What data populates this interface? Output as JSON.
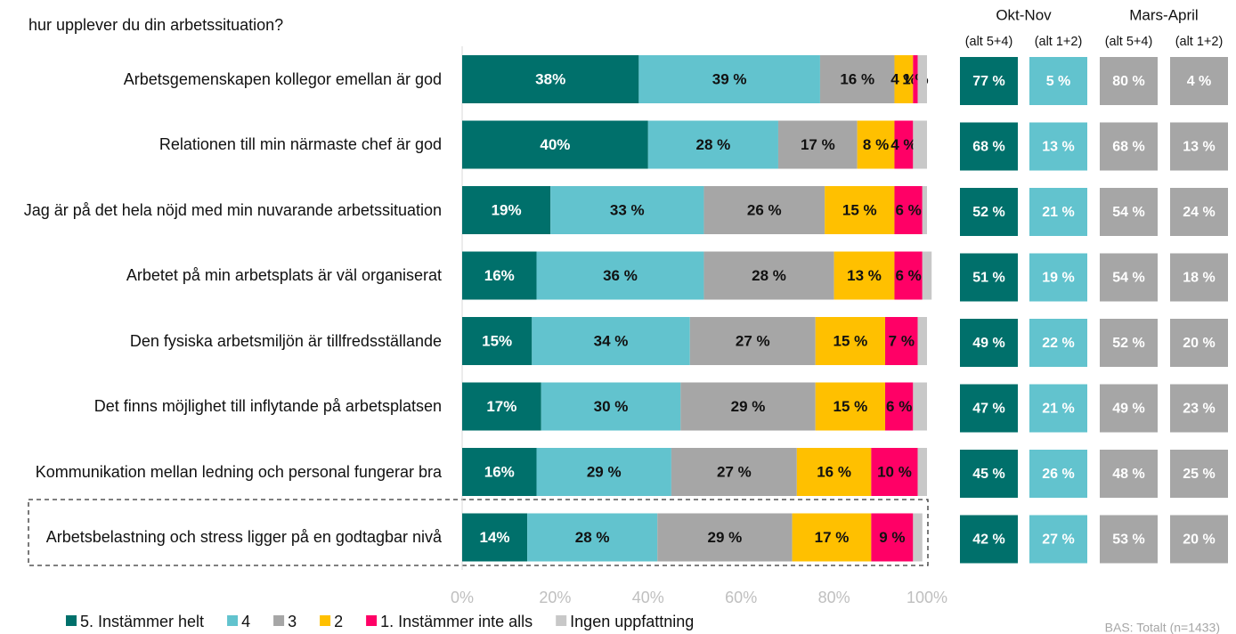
{
  "chart_data": {
    "type": "stacked-bar-horizontal",
    "title": "hur upplever du din arbetssituation?",
    "categories": [
      "Arbetsgemenskapen kollegor emellan är god",
      "Relationen till min närmaste chef är god",
      "Jag är på det hela nöjd med min nuvarande arbetssituation",
      "Arbetet på min arbetsplats är väl organiserat",
      "Den fysiska arbetsmiljön är tillfredsställande",
      "Det finns möjlighet till inflytande på arbetsplatsen",
      "Kommunikation mellan ledning och personal fungerar bra",
      "Arbetsbelastning och stress ligger på en godtagbar nivå"
    ],
    "series": [
      {
        "name": "5. Instämmer helt",
        "color": "#00706b",
        "values": [
          38,
          40,
          19,
          16,
          15,
          17,
          16,
          14
        ],
        "value_labels": [
          "38%",
          "40%",
          "19%",
          "16%",
          "15%",
          "17%",
          "16%",
          "14%"
        ]
      },
      {
        "name": "4",
        "color": "#62c3ce",
        "values": [
          39,
          28,
          33,
          36,
          34,
          30,
          29,
          28
        ],
        "value_labels": [
          "39 %",
          "28 %",
          "33 %",
          "36 %",
          "34 %",
          "30 %",
          "29 %",
          "28 %"
        ]
      },
      {
        "name": "3",
        "color": "#a6a6a6",
        "values": [
          16,
          17,
          26,
          28,
          27,
          29,
          27,
          29
        ],
        "value_labels": [
          "16 %",
          "17 %",
          "26 %",
          "28 %",
          "27 %",
          "29 %",
          "27 %",
          "29 %"
        ]
      },
      {
        "name": "2",
        "color": "#ffc000",
        "values": [
          4,
          8,
          15,
          13,
          15,
          15,
          16,
          17
        ],
        "value_labels": [
          "4 %",
          "8 %",
          "15 %",
          "13 %",
          "15 %",
          "15 %",
          "16 %",
          "17 %"
        ]
      },
      {
        "name": "1. Instämmer inte alls",
        "color": "#ff0066",
        "values": [
          1,
          4,
          6,
          6,
          7,
          6,
          10,
          9
        ],
        "value_labels": [
          "1 %",
          "4 %",
          "6 %",
          "6 %",
          "7 %",
          "6 %",
          "10 %",
          "9 %"
        ]
      },
      {
        "name": "Ingen uppfattning",
        "color": "#c8c8c8",
        "values": [
          2,
          3,
          1,
          2,
          2,
          3,
          2,
          2
        ]
      }
    ],
    "xlim": [
      0,
      100
    ],
    "xticks": [
      {
        "value": 0,
        "label": "0%"
      },
      {
        "value": 20,
        "label": "20%"
      },
      {
        "value": 40,
        "label": "40%"
      },
      {
        "value": 60,
        "label": "60%"
      },
      {
        "value": 80,
        "label": "80%"
      },
      {
        "value": 100,
        "label": "100%"
      }
    ],
    "summary": [
      {
        "name": "Okt-Nov",
        "columns": [
          {
            "name": "(alt 5+4)",
            "color": "#00706b",
            "values": [
              77,
              68,
              52,
              51,
              49,
              47,
              45,
              42
            ],
            "value_labels": [
              "77 %",
              "68 %",
              "52 %",
              "51 %",
              "49 %",
              "47 %",
              "45 %",
              "42 %"
            ]
          },
          {
            "name": "(alt 1+2)",
            "color": "#62c3ce",
            "values": [
              5,
              13,
              21,
              19,
              22,
              21,
              26,
              27
            ],
            "value_labels": [
              "5 %",
              "13 %",
              "21 %",
              "19 %",
              "22 %",
              "21 %",
              "26 %",
              "27 %"
            ]
          }
        ]
      },
      {
        "name": "Mars-April",
        "columns": [
          {
            "name": "(alt 5+4)",
            "color": "#a6a6a6",
            "values": [
              80,
              68,
              54,
              54,
              52,
              49,
              48,
              53
            ],
            "value_labels": [
              "80 %",
              "68 %",
              "54 %",
              "54 %",
              "52 %",
              "49 %",
              "48 %",
              "53 %"
            ]
          },
          {
            "name": "(alt 1+2)",
            "color": "#a6a6a6",
            "values": [
              4,
              13,
              24,
              18,
              20,
              23,
              25,
              20
            ],
            "value_labels": [
              "4 %",
              "13 %",
              "24 %",
              "18 %",
              "20 %",
              "23 %",
              "25 %",
              "20 %"
            ]
          }
        ]
      }
    ],
    "footnote": "BAS: Totalt (n=1433)"
  }
}
